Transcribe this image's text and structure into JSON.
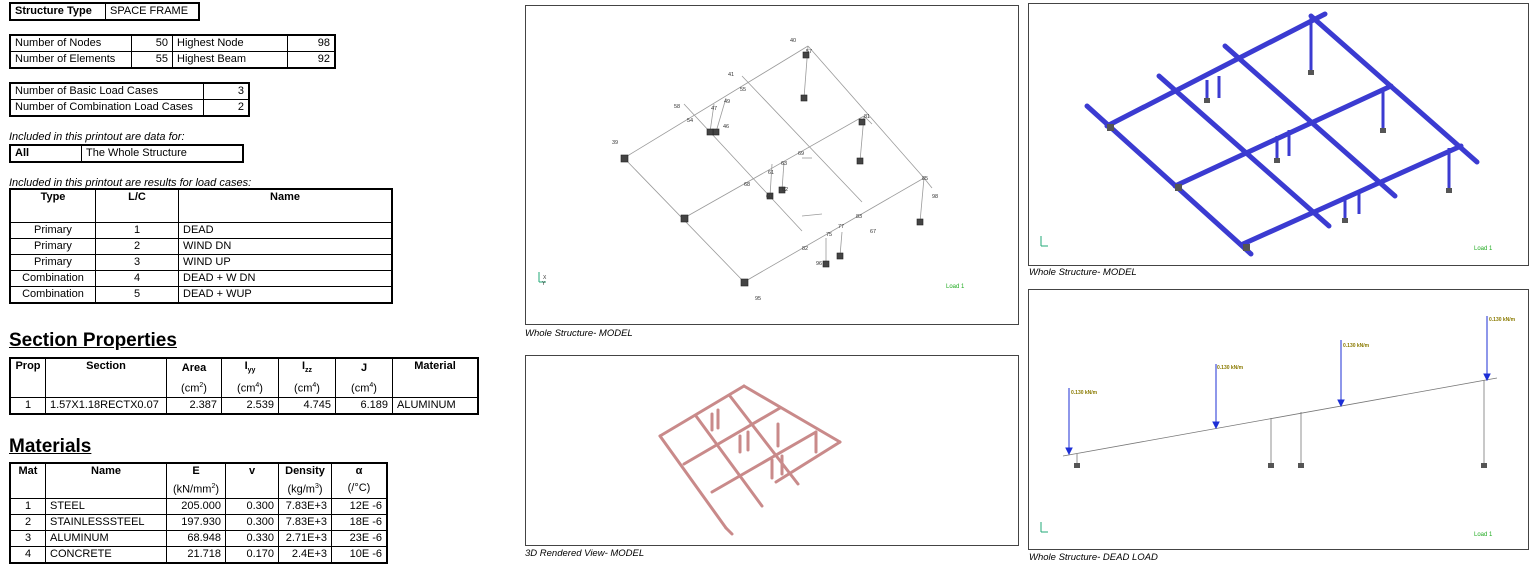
{
  "structure": {
    "label": "Structure Type",
    "value": "SPACE FRAME"
  },
  "counts": {
    "nodes_label": "Number of Nodes",
    "nodes": "50",
    "highest_node_label": "Highest Node",
    "highest_node": "98",
    "elements_label": "Number of Elements",
    "elements": "55",
    "highest_beam_label": "Highest Beam",
    "highest_beam": "92"
  },
  "loadcases": {
    "basic_label": "Number of Basic Load Cases",
    "basic": "3",
    "combo_label": "Number of Combination Load Cases",
    "combo": "2"
  },
  "included_data": {
    "caption": "Included in this printout are data for:",
    "key": "All",
    "value": "The Whole Structure"
  },
  "included_results": {
    "caption": "Included in this printout are results for load cases:",
    "headers": [
      "Type",
      "L/C",
      "Name"
    ],
    "rows": [
      {
        "type": "Primary",
        "lc": "1",
        "name": "DEAD"
      },
      {
        "type": "Primary",
        "lc": "2",
        "name": "WIND DN"
      },
      {
        "type": "Primary",
        "lc": "3",
        "name": "WIND UP"
      },
      {
        "type": "Combination",
        "lc": "4",
        "name": "DEAD + W DN"
      },
      {
        "type": "Combination",
        "lc": "5",
        "name": "DEAD + WUP"
      }
    ]
  },
  "section_properties": {
    "title": "Section Properties",
    "headers": {
      "prop": "Prop",
      "section": "Section",
      "area": "Area",
      "iyy": "I",
      "iyy_sub": "yy",
      "izz": "I",
      "izz_sub": "zz",
      "j": "J",
      "material": "Material",
      "unit_cm": "(cm",
      "unit_2": "2",
      "unit_4": "4",
      "unit_close": ")"
    },
    "rows": [
      {
        "prop": "1",
        "section": "1.57X1.18RECTX0.07",
        "area": "2.387",
        "iyy": "2.539",
        "izz": "4.745",
        "j": "6.189",
        "material": "ALUMINUM"
      }
    ]
  },
  "materials": {
    "title": "Materials",
    "headers": {
      "mat": "Mat",
      "name": "Name",
      "e": "E",
      "e_unit": "(kN/mm",
      "nu": "v",
      "density": "Density",
      "density_unit": "(kg/m",
      "alpha": "α",
      "alpha_unit": "(/°C)"
    },
    "rows": [
      {
        "mat": "1",
        "name": "STEEL",
        "e": "205.000",
        "nu": "0.300",
        "density": "7.83E+3",
        "alpha": "12E -6"
      },
      {
        "mat": "2",
        "name": "STAINLESSSTEEL",
        "e": "197.930",
        "nu": "0.300",
        "density": "7.83E+3",
        "alpha": "18E -6"
      },
      {
        "mat": "3",
        "name": "ALUMINUM",
        "e": "68.948",
        "nu": "0.330",
        "density": "2.71E+3",
        "alpha": "23E -6"
      },
      {
        "mat": "4",
        "name": "CONCRETE",
        "e": "21.718",
        "nu": "0.170",
        "density": "2.4E+3",
        "alpha": "10E -6"
      }
    ]
  },
  "views": {
    "model1_caption": "Whole Structure- MODEL",
    "rendered_caption": "3D Rendered View- MODEL",
    "model2_caption": "Whole Structure- MODEL",
    "deadload_caption": "Whole Structure- DEAD LOAD",
    "load_label": "Load 1",
    "udl_label": "0.130 kN/m",
    "node_labels": [
      "40",
      "57",
      "41",
      "55",
      "49",
      "47",
      "46",
      "54",
      "58",
      "39",
      "61",
      "63",
      "69",
      "68",
      "62",
      "60",
      "81",
      "75",
      "77",
      "82",
      "83",
      "67",
      "96",
      "95",
      "85",
      "98"
    ],
    "axis_x": "X",
    "axis_y": "Y"
  },
  "colors": {
    "beam_blue": "#3b3bd1",
    "rendered": "#c98a8a",
    "load_green": "#1faa1f",
    "load_arrow": "#1d2fd6"
  }
}
